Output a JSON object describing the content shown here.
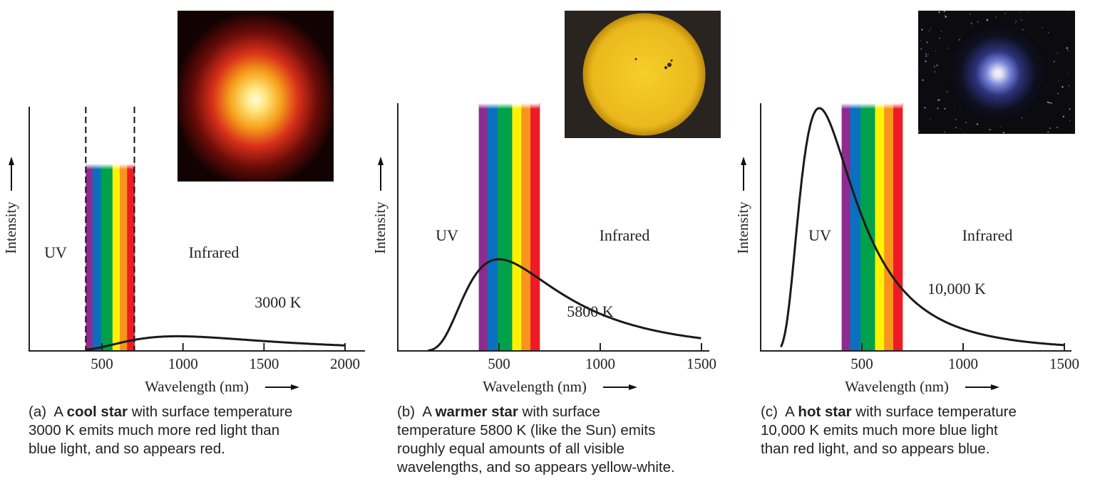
{
  "chart_data": [
    {
      "type": "line",
      "panel": "a",
      "xlabel": "Wavelength (nm)",
      "ylabel": "Intensity",
      "xticks": [
        500,
        1000,
        1500,
        2000
      ],
      "xlim": [
        50,
        2080
      ],
      "curve_label": "3000 K",
      "temperature_K": 3000,
      "peak_wavelength_nm": 1000,
      "peak_relative_intensity": 0.06,
      "curve_range_nm": [
        400,
        2000
      ],
      "region_labels": {
        "uv": "UV",
        "ir": "Infrared"
      },
      "dashed_visible_bounds": true,
      "image": "red-star"
    },
    {
      "type": "line",
      "panel": "b",
      "xlabel": "Wavelength (nm)",
      "ylabel": "Intensity",
      "xticks": [
        500,
        1000,
        1500
      ],
      "xlim": [
        0,
        1500
      ],
      "curve_label": "5800 K",
      "temperature_K": 5800,
      "peak_wavelength_nm": 500,
      "peak_relative_intensity": 0.37,
      "curve_range_nm": [
        150,
        1500
      ],
      "region_labels": {
        "uv": "UV",
        "ir": "Infrared"
      },
      "dashed_visible_bounds": false,
      "image": "sun"
    },
    {
      "type": "line",
      "panel": "c",
      "xlabel": "Wavelength (nm)",
      "ylabel": "Intensity",
      "xticks": [
        500,
        1000,
        1500
      ],
      "xlim": [
        0,
        1500
      ],
      "curve_label": "10,000 K",
      "temperature_K": 10000,
      "peak_wavelength_nm": 290,
      "peak_relative_intensity": 0.98,
      "curve_range_nm": [
        100,
        1500
      ],
      "region_labels": {
        "uv": "UV",
        "ir": "Infrared"
      },
      "dashed_visible_bounds": false,
      "image": "blue-star"
    }
  ],
  "spectrum_bands": [
    {
      "from": 400,
      "to": 442,
      "color": "#8e2b8f"
    },
    {
      "from": 442,
      "to": 493,
      "color": "#0b6fc0"
    },
    {
      "from": 493,
      "to": 565,
      "color": "#00a14b"
    },
    {
      "from": 565,
      "to": 610,
      "color": "#fff200"
    },
    {
      "from": 610,
      "to": 655,
      "color": "#f7941d"
    },
    {
      "from": 655,
      "to": 700,
      "color": "#ed1c24"
    }
  ],
  "captions": [
    {
      "label": "(a)",
      "pre": "A ",
      "bold": "cool star",
      "post": " with surface temperature",
      "lines": [
        "3000 K emits much more red light than",
        "blue light, and so appears red."
      ]
    },
    {
      "label": "(b)",
      "pre": "A ",
      "bold": "warmer star",
      "post": " with surface",
      "lines": [
        "temperature 5800 K (like the Sun) emits",
        "roughly equal amounts of all visible",
        "wavelengths, and so appears yellow-white."
      ]
    },
    {
      "label": "(c)",
      "pre": "A ",
      "bold": "hot star",
      "post": " with surface temperature",
      "lines": [
        "10,000 K emits much more blue light",
        "than red light, and so appears blue."
      ]
    }
  ]
}
